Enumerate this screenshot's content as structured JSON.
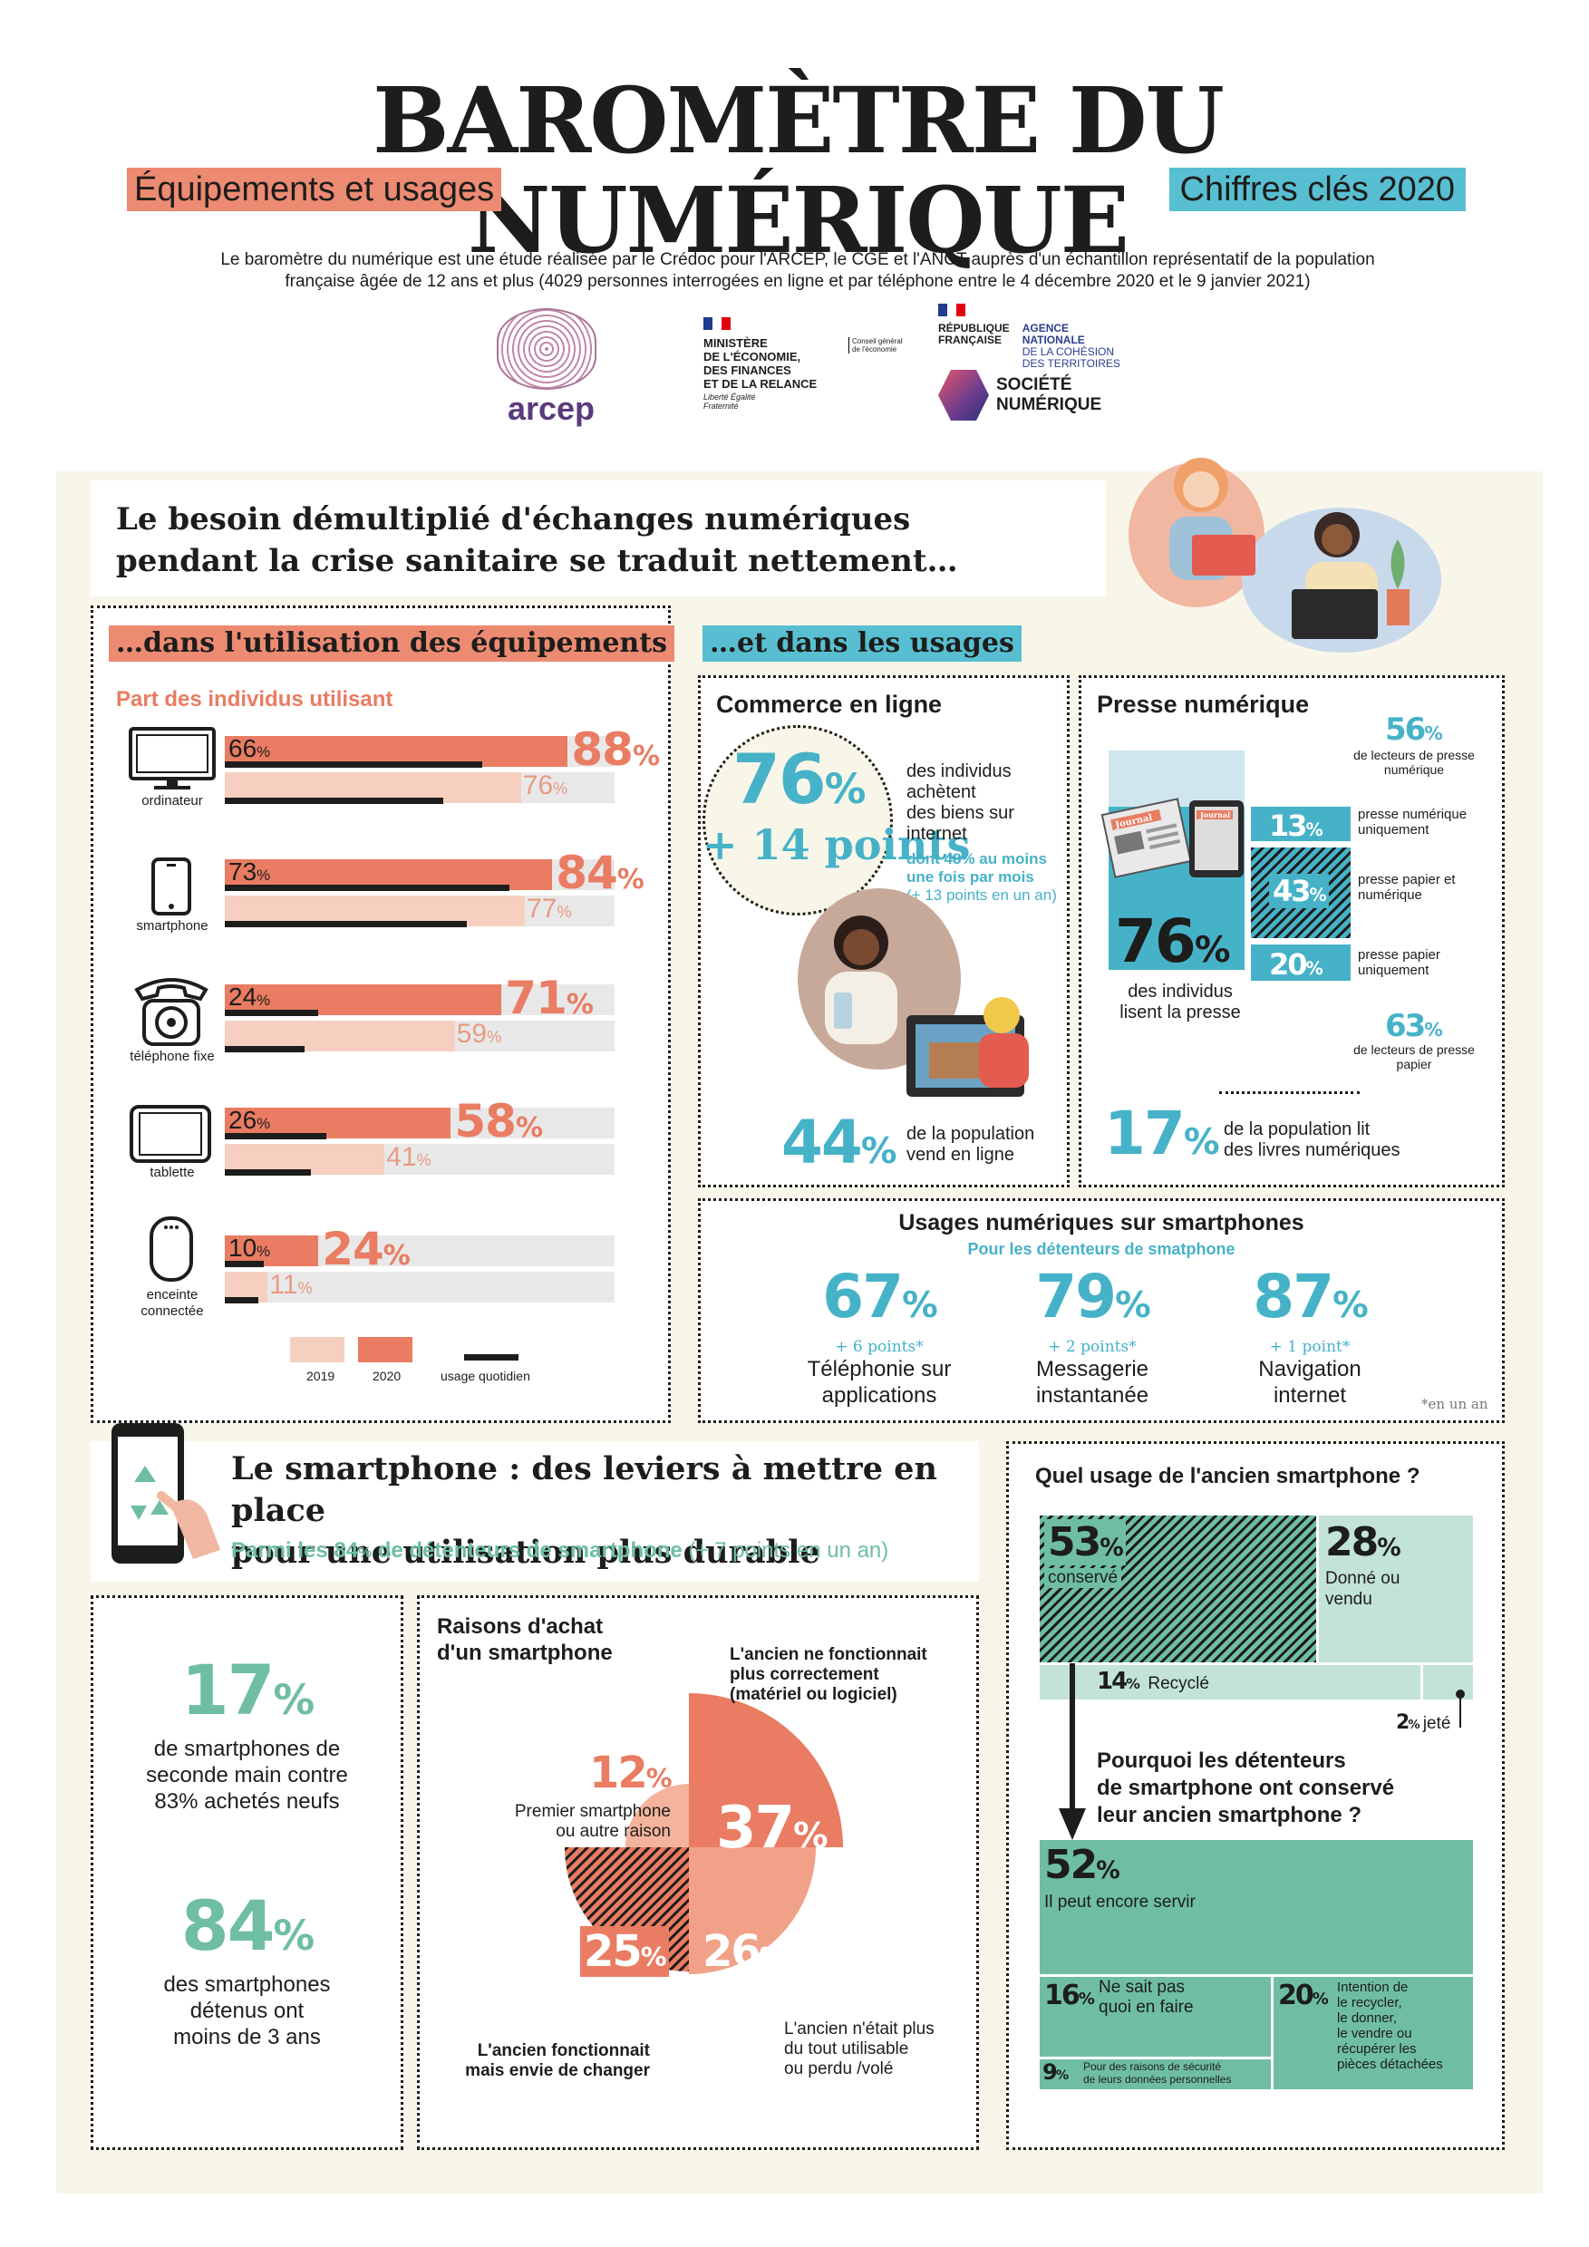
{
  "header": {
    "title": "BAROMÈTRE DU NUMÉRIQUE",
    "subtitle_left": "Équipements et usages",
    "subtitle_right": "Chiffres clés 2020",
    "intro_line1": "Le baromètre du numérique est une étude réalisée par le Crédoc pour l'ARCEP,  le CGE et l'ANCT auprès d'un échantillon représentatif de la population",
    "intro_line2": "française âgée de 12 ans et plus (4029 personnes interrogées en ligne et par téléphone entre le 4 décembre 2020 et le 9 janvier 2021)"
  },
  "logos": {
    "arcep": "arcep",
    "ministere": [
      "MINISTÈRE",
      "DE L'ÉCONOMIE,",
      "DES FINANCES",
      "ET DE LA RELANCE"
    ],
    "ministere_motto": "Liberté Égalité Fraternité",
    "ministere_cge": "Conseil général de l'économie",
    "republique": [
      "RÉPUBLIQUE",
      "FRANÇAISE"
    ],
    "anct": [
      "AGENCE",
      "NATIONALE",
      "DE LA COHÉSION",
      "DES TERRITOIRES"
    ],
    "societe": [
      "SOCIÉTÉ",
      "NUMÉRIQUE"
    ]
  },
  "crisis": {
    "heading_line1": "Le besoin démultiplié d'échanges numériques",
    "heading_line2": "pendant la crise sanitaire se traduit nettement…"
  },
  "equipment": {
    "label": "…dans l'utilisation des équipements",
    "subtitle": "Part des individus utilisant",
    "items": [
      {
        "name": "ordinateur",
        "v2020": 88,
        "v2019": 76,
        "daily": 66
      },
      {
        "name": "smartphone",
        "v2020": 84,
        "v2019": 77,
        "daily": 73
      },
      {
        "name": "téléphone fixe",
        "v2020": 71,
        "v2019": 59,
        "daily": 24
      },
      {
        "name": "tablette",
        "v2020": 58,
        "v2019": 41,
        "daily": 26
      },
      {
        "name_line1": "enceinte",
        "name_line2": "connectée",
        "v2020": 24,
        "v2019": 11,
        "daily": 10
      }
    ],
    "legend": {
      "y2019": "2019",
      "y2020": "2020",
      "daily": "usage quotidien"
    },
    "colors": {
      "y2020": "#e97c62",
      "y2019": "#f6cfc0",
      "daily": "#1d1d1b",
      "track": "#e8e8e8"
    }
  },
  "usages": {
    "label": "…et dans les usages",
    "commerce": {
      "title": "Commerce en ligne",
      "value": "76",
      "delta": "+ 14 points",
      "text": [
        "des individus",
        "achètent",
        "des biens sur",
        "internet"
      ],
      "detail": [
        "dont 48% au moins",
        "une fois par mois"
      ],
      "detail_note": "(+ 13 points en un an)",
      "sell_value": "44",
      "sell_text": [
        "de la population",
        "vend en ligne"
      ]
    },
    "presse": {
      "title": "Presse numérique",
      "value": "76",
      "value_text": [
        "des individus",
        "lisent la presse"
      ],
      "top": {
        "value": "56",
        "text": [
          "de lecteurs de presse",
          "numérique"
        ]
      },
      "rows": [
        {
          "value": "13",
          "text": [
            "presse numérique",
            "uniquement"
          ]
        },
        {
          "value": "43",
          "text": [
            "presse papier et",
            "numérique"
          ]
        },
        {
          "value": "20",
          "text": [
            "presse papier",
            "uniquement"
          ]
        }
      ],
      "bottom": {
        "value": "63",
        "text": [
          "de lecteurs de presse",
          "papier"
        ]
      },
      "newspaper": "Journal",
      "books_value": "17",
      "books_text": [
        "de la population lit",
        "des livres numériques"
      ]
    },
    "smartphone_usages": {
      "title": "Usages numériques sur smartphones",
      "subtitle": "Pour les détenteurs de smatphone",
      "items": [
        {
          "value": "67",
          "delta": "+ 6 points*",
          "line1": "Téléphonie sur",
          "line2": "applications"
        },
        {
          "value": "79",
          "delta": "+ 2 points*",
          "line1": "Messagerie",
          "line2": "instantanée"
        },
        {
          "value": "87",
          "delta": "+ 1 point*",
          "line1": "Navigation",
          "line2": "internet"
        }
      ],
      "footnote": "*en un an"
    }
  },
  "durable": {
    "heading_line1": "Le smartphone : des leviers à mettre en place",
    "heading_line2": "pour une utilisation plus durable",
    "sub_prefix": "Parmi les 84",
    "sub_suffix": " de détenteurs de smartphone",
    "sub_note": " (+ 7 points en un an)",
    "stat1": {
      "value": "17",
      "text": [
        "de smartphones de",
        "seconde main contre",
        "83% achetés neufs"
      ]
    },
    "stat2": {
      "value": "84",
      "text": [
        "des smartphones",
        "détenus ont",
        "moins de 3 ans"
      ]
    },
    "raisons": {
      "title": [
        "Raisons d'achat",
        "d'un smartphone"
      ],
      "segments": [
        {
          "value": "37",
          "label": [
            "L'ancien ne fonctionnait",
            "plus correctement",
            "(matériel ou logiciel)"
          ]
        },
        {
          "value": "26",
          "label": [
            "L'ancien n'était plus",
            "du tout utilisable",
            "ou perdu /volé"
          ]
        },
        {
          "value": "25",
          "label": [
            "L'ancien fonctionnait",
            "mais envie de changer"
          ]
        },
        {
          "value": "12",
          "label": [
            "Premier smartphone",
            "ou autre raison"
          ]
        }
      ]
    },
    "ancien": {
      "title": "Quel usage de l'ancien smartphone ?",
      "items": [
        {
          "value": "53",
          "label": "conservé"
        },
        {
          "value": "28",
          "label": [
            "Donné ou",
            "vendu"
          ]
        },
        {
          "value": "14",
          "label": "Recyclé"
        },
        {
          "value": "2",
          "label": "jeté"
        }
      ],
      "question": [
        "Pourquoi les détenteurs",
        "de smartphone ont conservé",
        "leur ancien smartphone ?"
      ],
      "reasons": [
        {
          "value": "52",
          "label": "Il peut encore servir"
        },
        {
          "value": "16",
          "label": [
            "Ne sait pas",
            "quoi en faire"
          ]
        },
        {
          "value": "20",
          "label": [
            "Intention de",
            "le recycler,",
            "le donner,",
            "le vendre ou",
            "récupérer les",
            "pièces détachées"
          ]
        },
        {
          "value": "9",
          "label": [
            "Pour des raisons de sécurité",
            "de leurs données personnelles"
          ]
        }
      ]
    }
  }
}
